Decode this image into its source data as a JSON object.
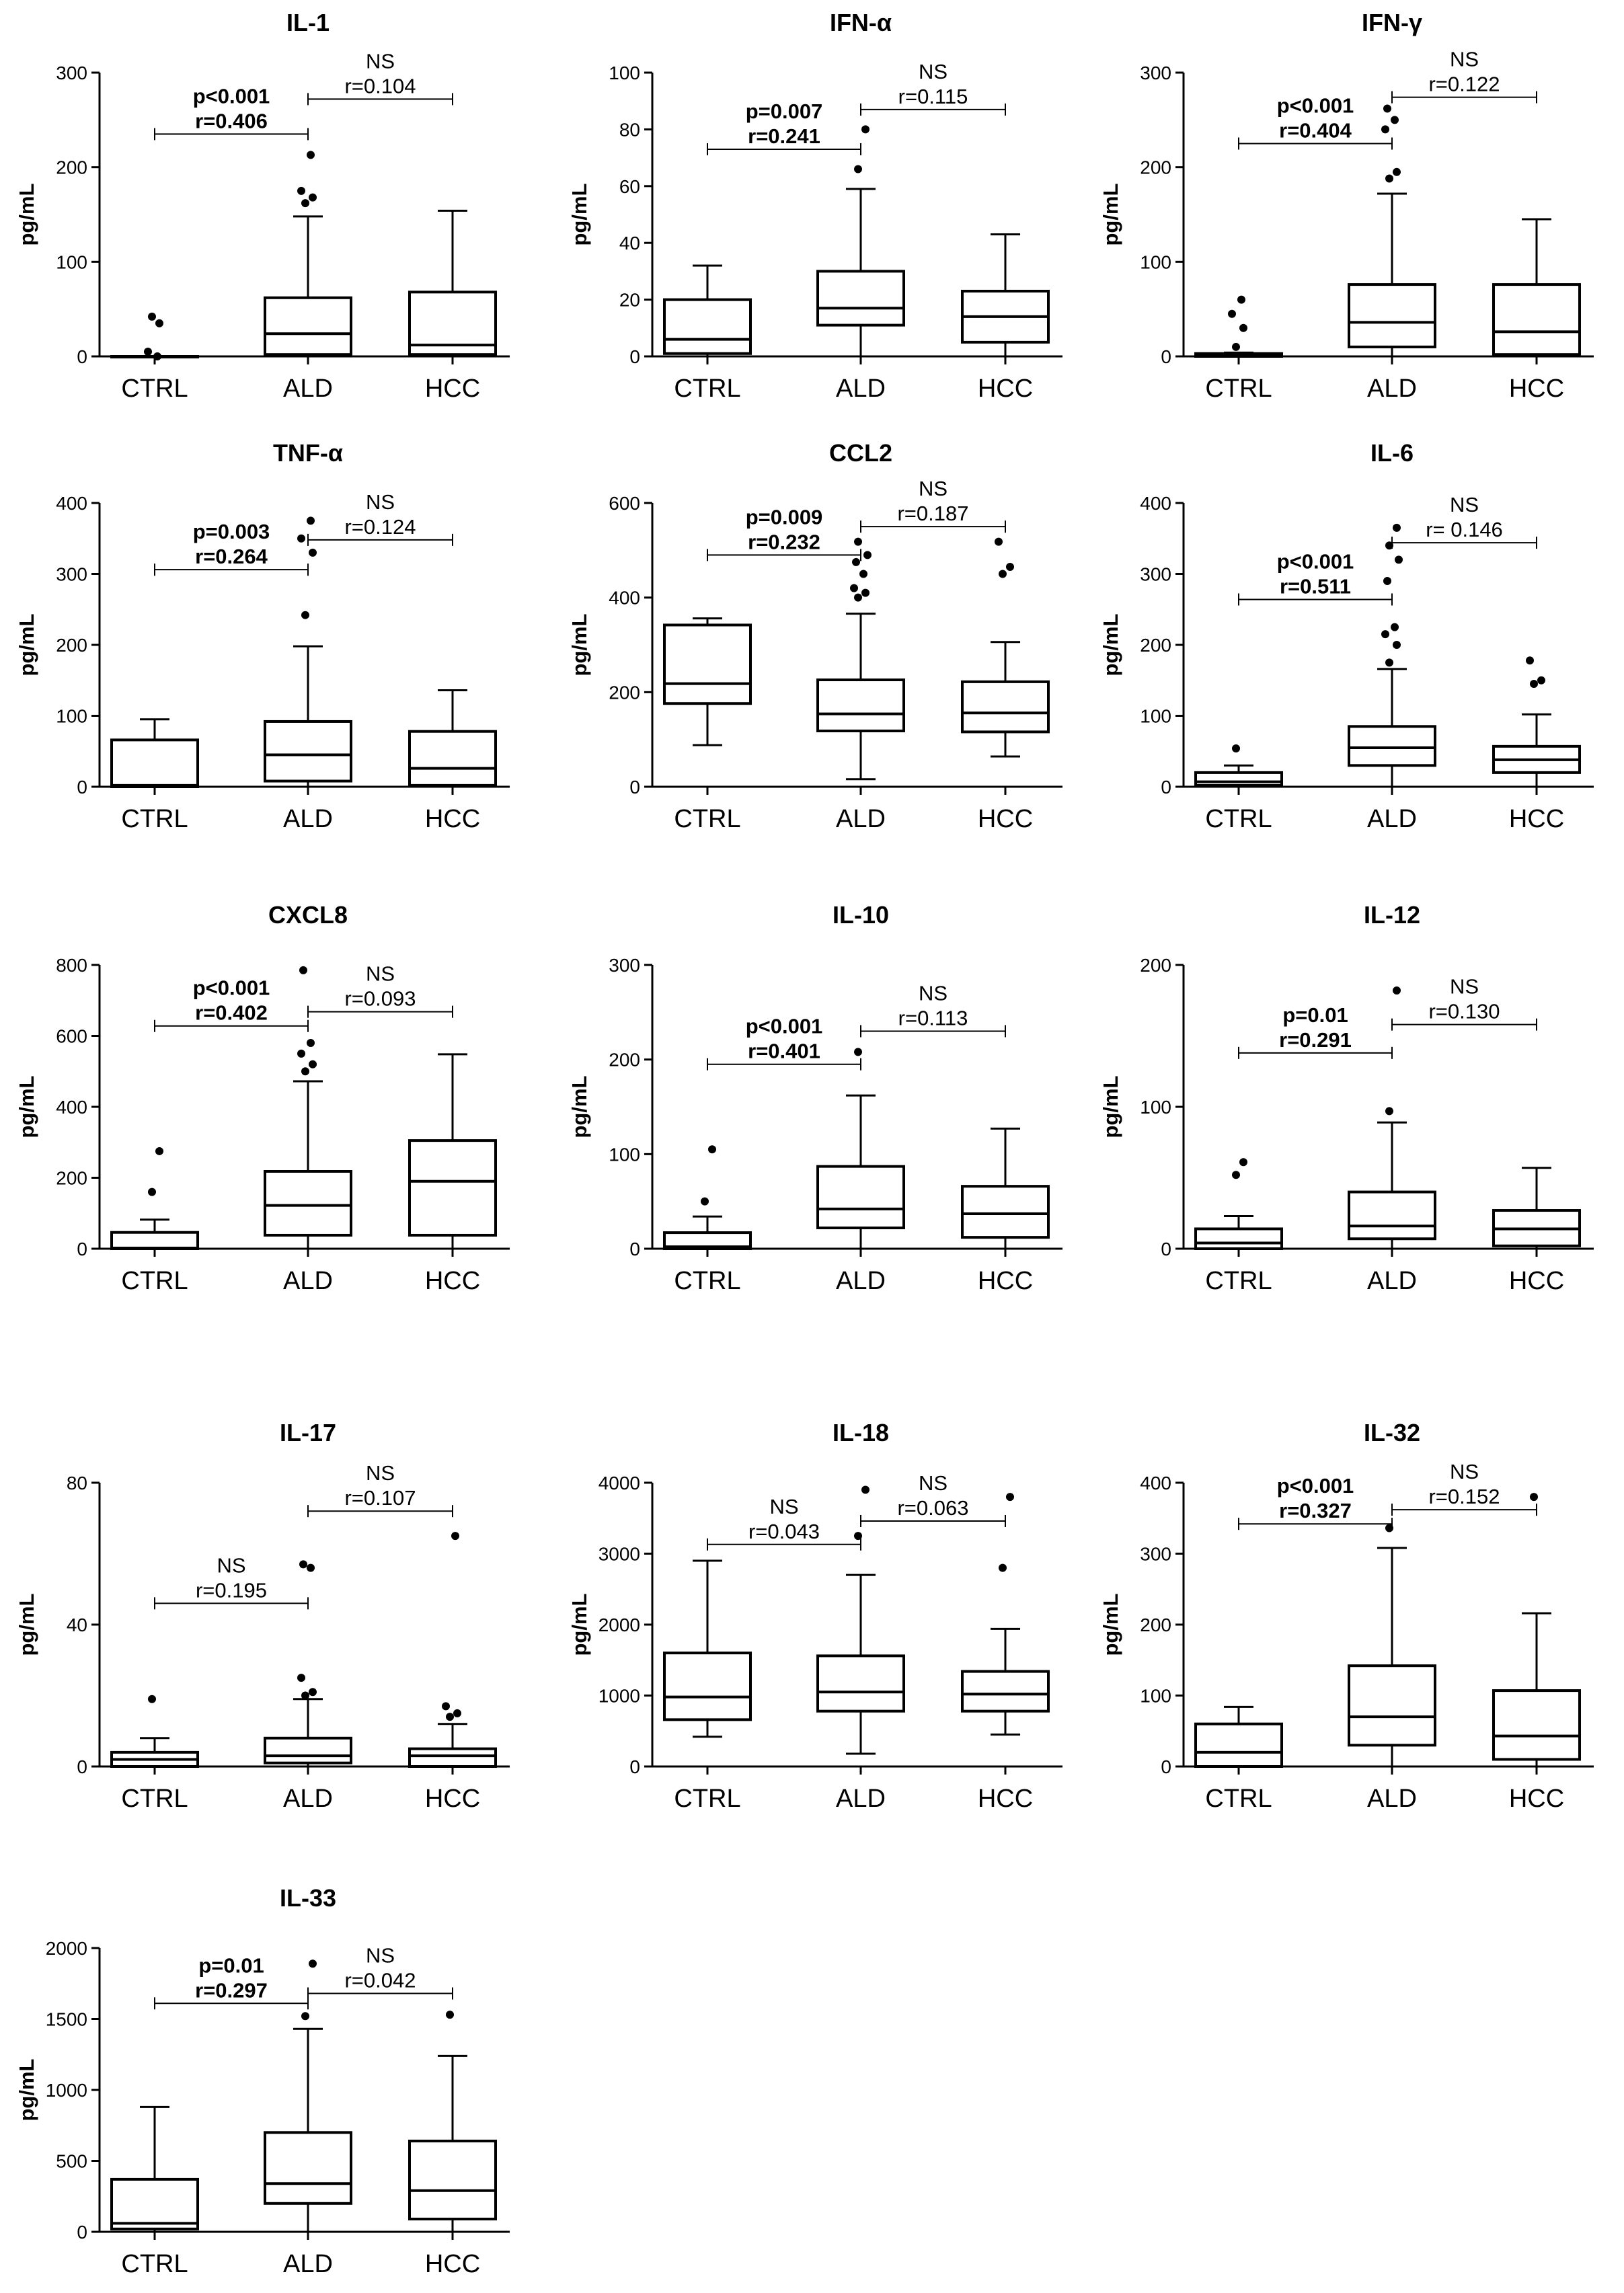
{
  "chart_data": [
    {
      "type": "box",
      "title": "IL-1",
      "ylabel": "pg/mL",
      "ylim": [
        0,
        300
      ],
      "yticks": [
        0,
        100,
        200,
        300
      ],
      "categories": [
        "CTRL",
        "ALD",
        "HCC"
      ],
      "boxes": [
        {
          "whisker_low": 0,
          "q1": 0,
          "median": 0,
          "q3": 0,
          "whisker_high": 0,
          "outliers": [
            42,
            35,
            5,
            0
          ]
        },
        {
          "whisker_low": 0,
          "q1": 2,
          "median": 24,
          "q3": 62,
          "whisker_high": 148,
          "outliers": [
            162,
            168,
            175,
            213
          ]
        },
        {
          "whisker_low": 0,
          "q1": 2,
          "median": 12,
          "q3": 68,
          "whisker_high": 154,
          "outliers": []
        }
      ],
      "comparisons": [
        {
          "from": 0,
          "to": 1,
          "y": 235,
          "lines": [
            "p<0.001",
            "r=0.406"
          ],
          "bold": true
        },
        {
          "from": 1,
          "to": 2,
          "y": 272,
          "lines": [
            "NS",
            "r=0.104"
          ],
          "bold": false
        }
      ]
    },
    {
      "type": "box",
      "title": "IFN-α",
      "ylabel": "pg/mL",
      "ylim": [
        0,
        100
      ],
      "yticks": [
        0,
        20,
        40,
        60,
        80,
        100
      ],
      "categories": [
        "CTRL",
        "ALD",
        "HCC"
      ],
      "boxes": [
        {
          "whisker_low": 0,
          "q1": 1,
          "median": 6,
          "q3": 20,
          "whisker_high": 32,
          "outliers": []
        },
        {
          "whisker_low": 0,
          "q1": 11,
          "median": 17,
          "q3": 30,
          "whisker_high": 59,
          "outliers": [
            66,
            80
          ]
        },
        {
          "whisker_low": 0,
          "q1": 5,
          "median": 14,
          "q3": 23,
          "whisker_high": 43,
          "outliers": []
        }
      ],
      "comparisons": [
        {
          "from": 0,
          "to": 1,
          "y": 73,
          "lines": [
            "p=0.007",
            "r=0.241"
          ],
          "bold": true
        },
        {
          "from": 1,
          "to": 2,
          "y": 87,
          "lines": [
            "NS",
            "r=0.115"
          ],
          "bold": false
        }
      ]
    },
    {
      "type": "box",
      "title": "IFN-γ",
      "ylabel": "pg/mL",
      "ylim": [
        0,
        300
      ],
      "yticks": [
        0,
        100,
        200,
        300
      ],
      "categories": [
        "CTRL",
        "ALD",
        "HCC"
      ],
      "boxes": [
        {
          "whisker_low": 0,
          "q1": 0,
          "median": 1,
          "q3": 3,
          "whisker_high": 4,
          "outliers": [
            10,
            30,
            45,
            60
          ]
        },
        {
          "whisker_low": 0,
          "q1": 10,
          "median": 36,
          "q3": 76,
          "whisker_high": 172,
          "outliers": [
            188,
            195,
            240,
            250,
            262
          ]
        },
        {
          "whisker_low": 0,
          "q1": 2,
          "median": 26,
          "q3": 76,
          "whisker_high": 145,
          "outliers": []
        }
      ],
      "comparisons": [
        {
          "from": 0,
          "to": 1,
          "y": 225,
          "lines": [
            "p<0.001",
            "r=0.404"
          ],
          "bold": true
        },
        {
          "from": 1,
          "to": 2,
          "y": 274,
          "lines": [
            "NS",
            "r=0.122"
          ],
          "bold": false
        }
      ]
    },
    {
      "type": "box",
      "title": "TNF-α",
      "ylabel": "pg/mL",
      "ylim": [
        0,
        400
      ],
      "yticks": [
        0,
        100,
        200,
        300,
        400
      ],
      "categories": [
        "CTRL",
        "ALD",
        "HCC"
      ],
      "boxes": [
        {
          "whisker_low": 0,
          "q1": 0,
          "median": 2,
          "q3": 66,
          "whisker_high": 95,
          "outliers": []
        },
        {
          "whisker_low": 0,
          "q1": 8,
          "median": 45,
          "q3": 92,
          "whisker_high": 198,
          "outliers": [
            242,
            330,
            350,
            375
          ]
        },
        {
          "whisker_low": 0,
          "q1": 2,
          "median": 26,
          "q3": 78,
          "whisker_high": 136,
          "outliers": []
        }
      ],
      "comparisons": [
        {
          "from": 0,
          "to": 1,
          "y": 306,
          "lines": [
            "p=0.003",
            "r=0.264"
          ],
          "bold": true
        },
        {
          "from": 1,
          "to": 2,
          "y": 348,
          "lines": [
            "NS",
            "r=0.124"
          ],
          "bold": false
        }
      ]
    },
    {
      "type": "box",
      "title": "CCL2",
      "ylabel": "pg/mL",
      "ylim": [
        0,
        600
      ],
      "yticks": [
        0,
        200,
        400,
        600
      ],
      "categories": [
        "CTRL",
        "ALD",
        "HCC"
      ],
      "boxes": [
        {
          "whisker_low": 88,
          "q1": 176,
          "median": 218,
          "q3": 342,
          "whisker_high": 356,
          "outliers": []
        },
        {
          "whisker_low": 16,
          "q1": 118,
          "median": 154,
          "q3": 226,
          "whisker_high": 366,
          "outliers": [
            400,
            410,
            420,
            450,
            475,
            490,
            518
          ]
        },
        {
          "whisker_low": 64,
          "q1": 116,
          "median": 156,
          "q3": 222,
          "whisker_high": 306,
          "outliers": [
            450,
            465,
            518
          ]
        }
      ],
      "comparisons": [
        {
          "from": 0,
          "to": 1,
          "y": 490,
          "lines": [
            "p=0.009",
            "r=0.232"
          ],
          "bold": true
        },
        {
          "from": 1,
          "to": 2,
          "y": 550,
          "lines": [
            "NS",
            "r=0.187"
          ],
          "bold": false
        }
      ]
    },
    {
      "type": "box",
      "title": "IL-6",
      "ylabel": "pg/mL",
      "ylim": [
        0,
        400
      ],
      "yticks": [
        0,
        100,
        200,
        300,
        400
      ],
      "categories": [
        "CTRL",
        "ALD",
        "HCC"
      ],
      "boxes": [
        {
          "whisker_low": 0,
          "q1": 2,
          "median": 7,
          "q3": 20,
          "whisker_high": 30,
          "outliers": [
            54
          ]
        },
        {
          "whisker_low": 0,
          "q1": 30,
          "median": 55,
          "q3": 85,
          "whisker_high": 166,
          "outliers": [
            175,
            200,
            215,
            225,
            290,
            320,
            340,
            365
          ]
        },
        {
          "whisker_low": 0,
          "q1": 20,
          "median": 38,
          "q3": 57,
          "whisker_high": 102,
          "outliers": [
            145,
            150,
            178
          ]
        }
      ],
      "comparisons": [
        {
          "from": 0,
          "to": 1,
          "y": 264,
          "lines": [
            "p<0.001",
            "r=0.511"
          ],
          "bold": true
        },
        {
          "from": 1,
          "to": 2,
          "y": 344,
          "lines": [
            "NS",
            "r= 0.146"
          ],
          "bold": false
        }
      ]
    },
    {
      "type": "box",
      "title": "CXCL8",
      "ylabel": "pg/mL",
      "ylim": [
        0,
        800
      ],
      "yticks": [
        0,
        200,
        400,
        600,
        800
      ],
      "categories": [
        "CTRL",
        "ALD",
        "HCC"
      ],
      "boxes": [
        {
          "whisker_low": 0,
          "q1": 0,
          "median": 2,
          "q3": 46,
          "whisker_high": 82,
          "outliers": [
            160,
            275
          ]
        },
        {
          "whisker_low": 0,
          "q1": 38,
          "median": 122,
          "q3": 218,
          "whisker_high": 472,
          "outliers": [
            500,
            520,
            550,
            580,
            785
          ]
        },
        {
          "whisker_low": 0,
          "q1": 38,
          "median": 190,
          "q3": 305,
          "whisker_high": 548,
          "outliers": []
        }
      ],
      "comparisons": [
        {
          "from": 0,
          "to": 1,
          "y": 628,
          "lines": [
            "p<0.001",
            "r=0.402"
          ],
          "bold": true
        },
        {
          "from": 1,
          "to": 2,
          "y": 668,
          "lines": [
            "NS",
            "r=0.093"
          ],
          "bold": false
        }
      ]
    },
    {
      "type": "box",
      "title": "IL-10",
      "ylabel": "pg/mL",
      "ylim": [
        0,
        300
      ],
      "yticks": [
        0,
        100,
        200,
        300
      ],
      "categories": [
        "CTRL",
        "ALD",
        "HCC"
      ],
      "boxes": [
        {
          "whisker_low": 0,
          "q1": 0,
          "median": 2,
          "q3": 17,
          "whisker_high": 34,
          "outliers": [
            50,
            105
          ]
        },
        {
          "whisker_low": 0,
          "q1": 22,
          "median": 42,
          "q3": 87,
          "whisker_high": 162,
          "outliers": [
            208
          ]
        },
        {
          "whisker_low": 0,
          "q1": 12,
          "median": 37,
          "q3": 66,
          "whisker_high": 127,
          "outliers": []
        }
      ],
      "comparisons": [
        {
          "from": 0,
          "to": 1,
          "y": 195,
          "lines": [
            "p<0.001",
            "r=0.401"
          ],
          "bold": true
        },
        {
          "from": 1,
          "to": 2,
          "y": 230,
          "lines": [
            "NS",
            "r=0.113"
          ],
          "bold": false
        }
      ]
    },
    {
      "type": "box",
      "title": "IL-12",
      "ylabel": "pg/mL",
      "ylim": [
        0,
        200
      ],
      "yticks": [
        0,
        100,
        200
      ],
      "categories": [
        "CTRL",
        "ALD",
        "HCC"
      ],
      "boxes": [
        {
          "whisker_low": 0,
          "q1": 0,
          "median": 4,
          "q3": 14,
          "whisker_high": 23,
          "outliers": [
            52,
            61
          ]
        },
        {
          "whisker_low": 0,
          "q1": 7,
          "median": 16,
          "q3": 40,
          "whisker_high": 89,
          "outliers": [
            97,
            182
          ]
        },
        {
          "whisker_low": 0,
          "q1": 2,
          "median": 14,
          "q3": 27,
          "whisker_high": 57,
          "outliers": []
        }
      ],
      "comparisons": [
        {
          "from": 0,
          "to": 1,
          "y": 138,
          "lines": [
            "p=0.01",
            "r=0.291"
          ],
          "bold": true
        },
        {
          "from": 1,
          "to": 2,
          "y": 158,
          "lines": [
            "NS",
            "r=0.130"
          ],
          "bold": false
        }
      ]
    },
    {
      "type": "box",
      "title": "IL-17",
      "ylabel": "pg/mL",
      "ylim": [
        0,
        80
      ],
      "yticks": [
        0,
        40,
        80
      ],
      "categories": [
        "CTRL",
        "ALD",
        "HCC"
      ],
      "boxes": [
        {
          "whisker_low": 0,
          "q1": 0,
          "median": 2,
          "q3": 4,
          "whisker_high": 8,
          "outliers": [
            19
          ]
        },
        {
          "whisker_low": 0,
          "q1": 1,
          "median": 3,
          "q3": 8,
          "whisker_high": 19,
          "outliers": [
            20,
            21,
            25,
            56,
            57
          ]
        },
        {
          "whisker_low": 0,
          "q1": 0,
          "median": 3,
          "q3": 5,
          "whisker_high": 12,
          "outliers": [
            14,
            15,
            17,
            65
          ]
        }
      ],
      "comparisons": [
        {
          "from": 0,
          "to": 1,
          "y": 46,
          "lines": [
            "NS",
            "r=0.195"
          ],
          "bold": false
        },
        {
          "from": 1,
          "to": 2,
          "y": 72,
          "lines": [
            "NS",
            "r=0.107"
          ],
          "bold": false
        }
      ]
    },
    {
      "type": "box",
      "title": "IL-18",
      "ylabel": "pg/mL",
      "ylim": [
        0,
        4000
      ],
      "yticks": [
        0,
        1000,
        2000,
        3000,
        4000
      ],
      "categories": [
        "CTRL",
        "ALD",
        "HCC"
      ],
      "boxes": [
        {
          "whisker_low": 420,
          "q1": 660,
          "median": 980,
          "q3": 1600,
          "whisker_high": 2900,
          "outliers": []
        },
        {
          "whisker_low": 180,
          "q1": 780,
          "median": 1050,
          "q3": 1560,
          "whisker_high": 2700,
          "outliers": [
            3250,
            3900
          ]
        },
        {
          "whisker_low": 450,
          "q1": 780,
          "median": 1020,
          "q3": 1340,
          "whisker_high": 1940,
          "outliers": [
            2800,
            3800
          ]
        }
      ],
      "comparisons": [
        {
          "from": 0,
          "to": 1,
          "y": 3130,
          "lines": [
            "NS",
            "r=0.043"
          ],
          "bold": false
        },
        {
          "from": 1,
          "to": 2,
          "y": 3460,
          "lines": [
            "NS",
            "r=0.063"
          ],
          "bold": false
        }
      ]
    },
    {
      "type": "box",
      "title": "IL-32",
      "ylabel": "pg/mL",
      "ylim": [
        0,
        400
      ],
      "yticks": [
        0,
        100,
        200,
        300,
        400
      ],
      "categories": [
        "CTRL",
        "ALD",
        "HCC"
      ],
      "boxes": [
        {
          "whisker_low": 0,
          "q1": 0,
          "median": 20,
          "q3": 60,
          "whisker_high": 84,
          "outliers": []
        },
        {
          "whisker_low": 0,
          "q1": 30,
          "median": 70,
          "q3": 142,
          "whisker_high": 308,
          "outliers": [
            336
          ]
        },
        {
          "whisker_low": 0,
          "q1": 10,
          "median": 43,
          "q3": 107,
          "whisker_high": 216,
          "outliers": [
            380
          ]
        }
      ],
      "comparisons": [
        {
          "from": 0,
          "to": 1,
          "y": 342,
          "lines": [
            "p<0.001",
            "r=0.327"
          ],
          "bold": true
        },
        {
          "from": 1,
          "to": 2,
          "y": 362,
          "lines": [
            "NS",
            "r=0.152"
          ],
          "bold": false
        }
      ]
    },
    {
      "type": "box",
      "title": "IL-33",
      "ylabel": "pg/mL",
      "ylim": [
        0,
        2000
      ],
      "yticks": [
        0,
        500,
        1000,
        1500,
        2000
      ],
      "categories": [
        "CTRL",
        "ALD",
        "HCC"
      ],
      "boxes": [
        {
          "whisker_low": 0,
          "q1": 20,
          "median": 60,
          "q3": 370,
          "whisker_high": 880,
          "outliers": []
        },
        {
          "whisker_low": 0,
          "q1": 200,
          "median": 340,
          "q3": 700,
          "whisker_high": 1430,
          "outliers": [
            1520,
            1890
          ]
        },
        {
          "whisker_low": 0,
          "q1": 90,
          "median": 290,
          "q3": 640,
          "whisker_high": 1240,
          "outliers": [
            1530
          ]
        }
      ],
      "comparisons": [
        {
          "from": 0,
          "to": 1,
          "y": 1610,
          "lines": [
            "p=0.01",
            "r=0.297"
          ],
          "bold": true
        },
        {
          "from": 1,
          "to": 2,
          "y": 1680,
          "lines": [
            "NS",
            "r=0.042"
          ],
          "bold": false
        }
      ]
    }
  ]
}
